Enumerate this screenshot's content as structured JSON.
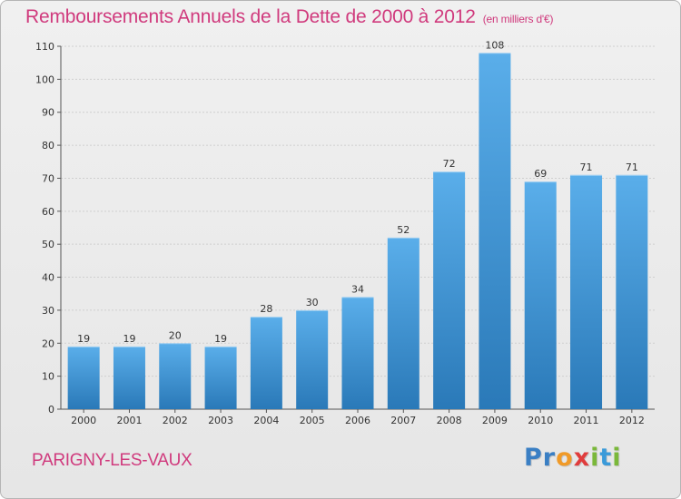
{
  "chart_data": {
    "type": "bar",
    "title": "Remboursements Annuels de la Dette de 2000 à 2012",
    "subtitle": "(en milliers d'€)",
    "categories": [
      "2000",
      "2001",
      "2002",
      "2003",
      "2004",
      "2005",
      "2006",
      "2007",
      "2008",
      "2009",
      "2010",
      "2011",
      "2012"
    ],
    "values": [
      19,
      19,
      20,
      19,
      28,
      30,
      34,
      52,
      72,
      108,
      69,
      71,
      71
    ],
    "ylim": [
      0,
      110
    ],
    "yticks": [
      0,
      10,
      20,
      30,
      40,
      50,
      60,
      70,
      80,
      90,
      100,
      110
    ],
    "grid": true,
    "bar_color_top": "#5aaeea",
    "bar_color_bottom": "#2a79b8"
  },
  "footer": {
    "place": "PARIGNY-LES-VAUX",
    "logo_letters": [
      {
        "ch": "P",
        "color": "#3a7fc4"
      },
      {
        "ch": "r",
        "color": "#3a7fc4"
      },
      {
        "ch": "o",
        "color": "#f09a28"
      },
      {
        "ch": "x",
        "color": "#e03c3c"
      },
      {
        "ch": "i",
        "color": "#7ab83a"
      },
      {
        "ch": "t",
        "color": "#3a9ad9"
      },
      {
        "ch": "i",
        "color": "#7ab83a"
      }
    ]
  }
}
